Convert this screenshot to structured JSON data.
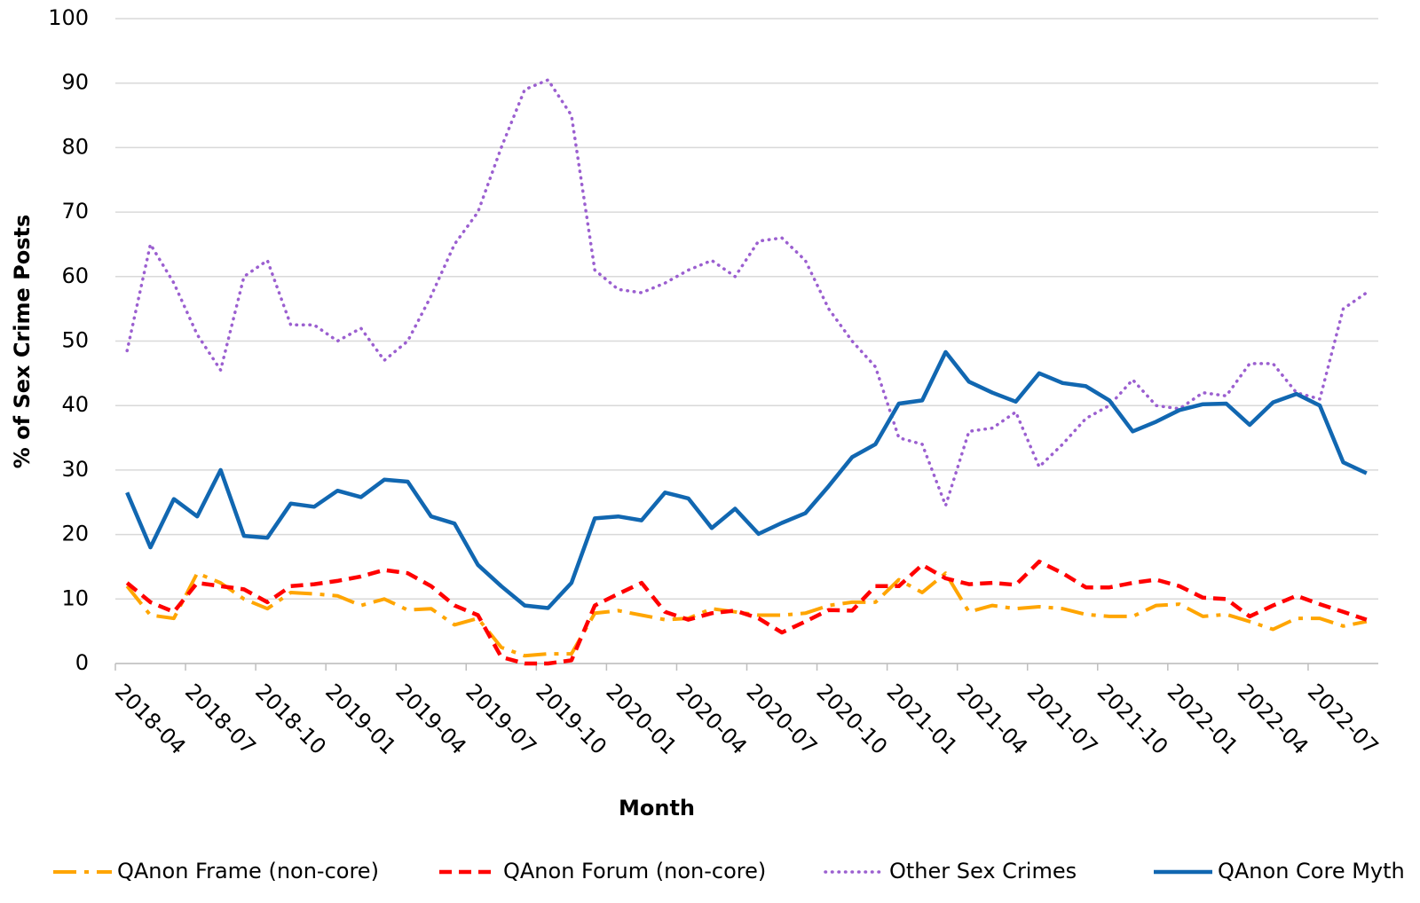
{
  "chart_data": {
    "type": "line",
    "x_axis_label": "Month",
    "y_axis_label": "% of Sex Crime Posts",
    "categories": [
      "2018-04",
      null,
      null,
      "2018-07",
      null,
      null,
      "2018-10",
      null,
      null,
      "2019-01",
      null,
      null,
      "2019-04",
      null,
      null,
      "2019-07",
      null,
      null,
      "2019-10",
      null,
      null,
      "2020-01",
      null,
      null,
      "2020-04",
      null,
      null,
      "2020-07",
      null,
      null,
      "2020-10",
      null,
      null,
      "2021-01",
      null,
      null,
      "2021-04",
      null,
      null,
      "2021-07",
      null,
      null,
      "2021-10",
      null,
      null,
      "2022-01",
      null,
      null,
      "2022-04",
      null,
      null,
      "2022-07",
      null,
      null
    ],
    "ylim": [
      0,
      100
    ],
    "yticks": [
      0,
      10,
      20,
      30,
      40,
      50,
      60,
      70,
      80,
      90,
      100
    ],
    "grid": true,
    "legend": "bottom",
    "series": [
      {
        "name": "QAnon Frame (non-core)",
        "color": "#FFA500",
        "values": [
          12,
          7.5,
          7,
          14,
          12.5,
          10,
          8.5,
          11,
          10.8,
          10.5,
          9,
          10,
          8.3,
          8.5,
          6,
          7,
          2.5,
          1.2,
          1.5,
          1.5,
          7.8,
          8.2,
          7.5,
          6.8,
          7,
          8.5,
          8,
          7.5,
          7.5,
          7.8,
          9,
          9.5,
          9.5,
          13,
          11,
          14,
          8,
          9,
          8.5,
          8.8,
          8.5,
          7.6,
          7.3,
          7.3,
          9,
          9.2,
          7.3,
          7.6,
          6.5,
          5.3,
          7,
          7,
          5.8,
          6.5
        ]
      },
      {
        "name": "QAnon Forum (non-core)",
        "color": "#FF0000",
        "values": [
          12.5,
          9.5,
          8,
          12.5,
          12,
          11.5,
          9.5,
          12,
          12.3,
          12.8,
          13.5,
          14.5,
          14,
          12,
          9,
          7.5,
          1,
          0,
          0,
          0.5,
          9,
          10.8,
          12.5,
          8,
          6.8,
          7.8,
          8.2,
          7,
          4.8,
          6.5,
          8.3,
          8.2,
          12,
          12,
          15.3,
          13.2,
          12.3,
          12.5,
          12.2,
          15.8,
          14,
          11.8,
          11.8,
          12.5,
          13,
          12,
          10.2,
          10,
          7.3,
          9,
          10.5,
          9.2,
          8,
          6.8
        ]
      },
      {
        "name": "Other Sex Crimes",
        "color": "#9B5FD0",
        "values": [
          48.5,
          65,
          59,
          51,
          45.5,
          60,
          62.5,
          52.5,
          52.5,
          50,
          52,
          47,
          50,
          57,
          65,
          70,
          80,
          89,
          90.5,
          85,
          61,
          58,
          57.5,
          59,
          61,
          62.5,
          60,
          65.5,
          66,
          62.5,
          55,
          50,
          46,
          35,
          34,
          24.5,
          36,
          36.5,
          39,
          30.5,
          34,
          38,
          40,
          44,
          40,
          39.5,
          42,
          41.5,
          46.5,
          46.5,
          42,
          41,
          55,
          57.5
        ]
      },
      {
        "name": "QAnon Core Myth",
        "color": "#1167B1",
        "values": [
          26.5,
          18,
          25.5,
          22.8,
          30,
          19.8,
          19.5,
          24.8,
          24.3,
          26.8,
          25.8,
          28.5,
          28.2,
          22.8,
          21.7,
          15.3,
          12,
          9,
          8.6,
          12.5,
          22.5,
          22.8,
          22.2,
          26.5,
          25.6,
          21,
          24,
          20.1,
          21.8,
          23.3,
          27.5,
          32,
          34,
          40.3,
          40.8,
          48.3,
          43.7,
          42,
          40.6,
          45,
          43.5,
          43,
          40.8,
          36,
          37.5,
          39.3,
          40.2,
          40.3,
          37,
          40.5,
          41.8,
          40,
          31.2,
          29.5
        ]
      }
    ]
  }
}
